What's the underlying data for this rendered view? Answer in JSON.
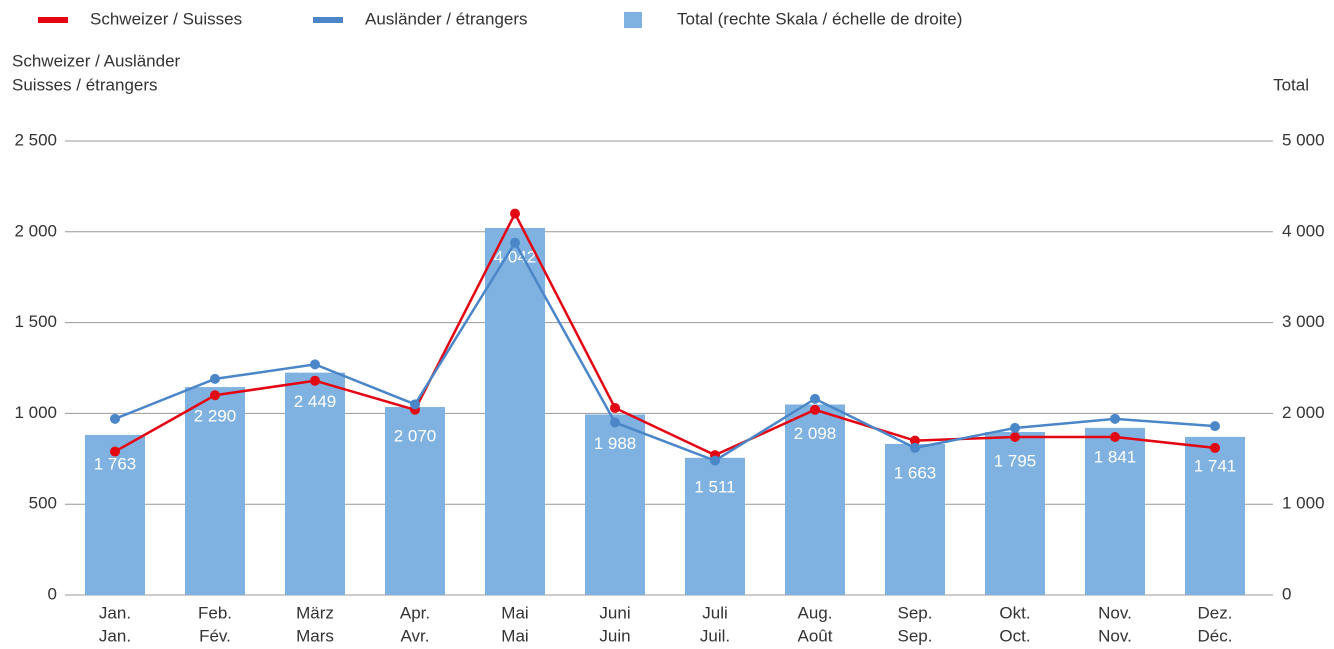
{
  "chart_data": {
    "type": "combo",
    "legend": "top",
    "y_label": [
      "Schweizer / Ausländer",
      "Suisses / étrangers"
    ],
    "y2_label": "Total",
    "categories": [
      [
        "Jan.",
        "Jan."
      ],
      [
        "Feb.",
        "Fév."
      ],
      [
        "März",
        "Mars"
      ],
      [
        "Apr.",
        "Avr."
      ],
      [
        "Mai",
        "Mai"
      ],
      [
        "Juni",
        "Juin"
      ],
      [
        "Juli",
        "Juil."
      ],
      [
        "Aug.",
        "Août"
      ],
      [
        "Sep.",
        "Sep."
      ],
      [
        "Okt.",
        "Oct."
      ],
      [
        "Nov.",
        "Nov."
      ],
      [
        "Dez.",
        "Déc."
      ]
    ],
    "series": [
      {
        "name": "Schweizer / Suisses",
        "type": "line",
        "color": "#e30613",
        "values": [
          790,
          1100,
          1180,
          1020,
          2100,
          1030,
          770,
          1020,
          850,
          870,
          870,
          810
        ]
      },
      {
        "name": "Ausländer / étrangers",
        "type": "line",
        "color": "#4a86c8",
        "values": [
          970,
          1190,
          1270,
          1050,
          1940,
          950,
          740,
          1080,
          810,
          920,
          970,
          930
        ]
      },
      {
        "name": "Total (rechte Skala / échelle de droite)",
        "type": "bar",
        "axis": "y2",
        "color": "#7fb2e0",
        "values": [
          1763,
          2290,
          2449,
          2070,
          4042,
          1988,
          1511,
          2098,
          1663,
          1795,
          1841,
          1741
        ],
        "value_labels": [
          "1 763",
          "2 290",
          "2 449",
          "2 070",
          "4 042",
          "1 988",
          "1 511",
          "2 098",
          "1 663",
          "1 795",
          "1 841",
          "1 741"
        ]
      }
    ],
    "ylim": [
      0,
      2500
    ],
    "yticks": [
      0,
      500,
      {
        "value": 1000,
        "label": "1 000"
      },
      {
        "value": 1500,
        "label": "1 500"
      },
      {
        "value": 2000,
        "label": "2 000"
      },
      {
        "value": 2500,
        "label": "2 500"
      }
    ],
    "y2lim": [
      0,
      5000
    ],
    "y2ticks": [
      0,
      {
        "value": 1000,
        "label": "1 000"
      },
      {
        "value": 2000,
        "label": "2 000"
      },
      {
        "value": 3000,
        "label": "3 000"
      },
      {
        "value": 4000,
        "label": "4 000"
      },
      {
        "value": 5000,
        "label": "5 000"
      }
    ],
    "grid": true
  }
}
